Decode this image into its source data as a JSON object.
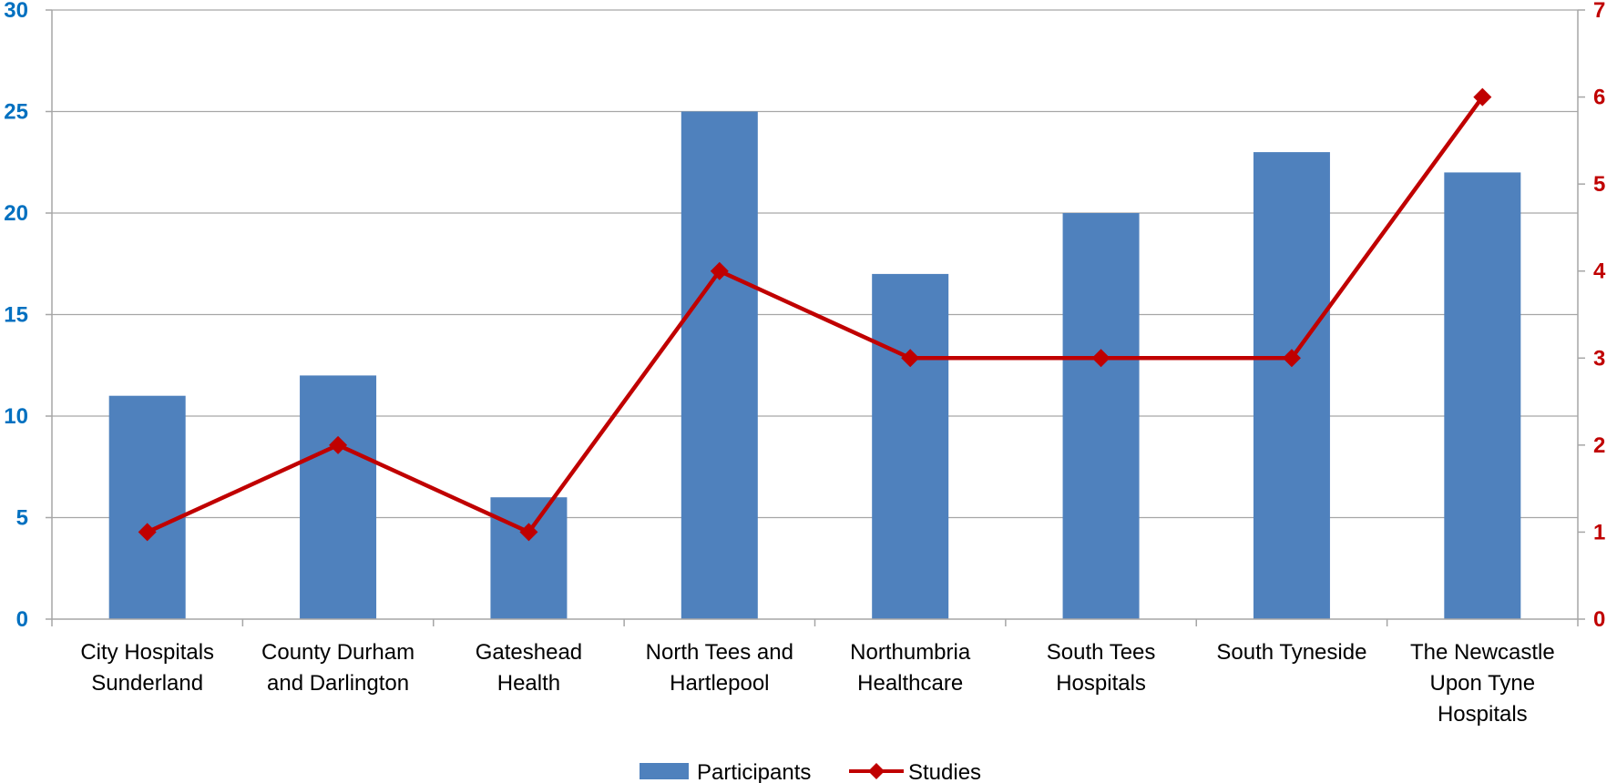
{
  "chart_data": {
    "type": "bar",
    "categories": [
      [
        "City Hospitals",
        "Sunderland"
      ],
      [
        "County Durham",
        "and Darlington"
      ],
      [
        "Gateshead",
        "Health"
      ],
      [
        "North Tees and",
        "Hartlepool"
      ],
      [
        "Northumbria",
        "Healthcare"
      ],
      [
        "South Tees",
        "Hospitals"
      ],
      [
        "South Tyneside"
      ],
      [
        "The Newcastle",
        "Upon Tyne",
        "Hospitals"
      ]
    ],
    "series": [
      {
        "name": "Participants",
        "type": "bar",
        "axis": "left",
        "color": "#4F81BD",
        "values": [
          11,
          12,
          6,
          25,
          17,
          20,
          23,
          22
        ]
      },
      {
        "name": "Studies",
        "type": "line",
        "axis": "right",
        "color": "#C00000",
        "marker": "diamond",
        "values": [
          1,
          2,
          1,
          4,
          3,
          3,
          3,
          6
        ]
      }
    ],
    "y_left": {
      "min": 0,
      "max": 30,
      "ticks": [
        0,
        5,
        10,
        15,
        20,
        25,
        30
      ],
      "color": "#0070C0"
    },
    "y_right": {
      "min": 0,
      "max": 7,
      "ticks": [
        0,
        1,
        2,
        3,
        4,
        5,
        6,
        7
      ],
      "color": "#C00000"
    },
    "grid": true,
    "legend_position": "bottom",
    "legend": [
      "Participants",
      "Studies"
    ]
  }
}
